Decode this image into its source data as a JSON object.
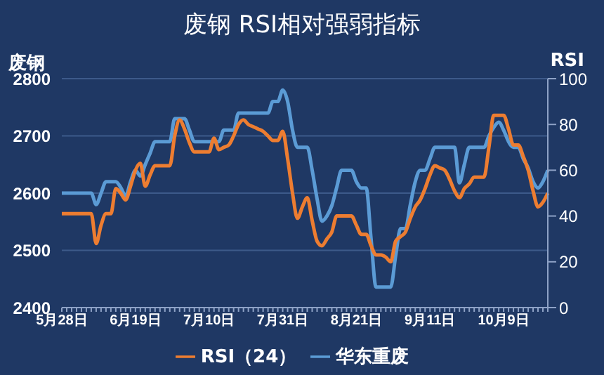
{
  "chart_data": {
    "type": "line",
    "title": "废钢 RSI相对强弱指标",
    "ylabel": "废钢",
    "y2label": "RSI",
    "categories": [
      "5月28日",
      null,
      null,
      null,
      null,
      null,
      null,
      null,
      null,
      null,
      null,
      null,
      null,
      null,
      null,
      "6月19日",
      null,
      null,
      null,
      null,
      null,
      null,
      null,
      null,
      null,
      null,
      null,
      null,
      null,
      null,
      "7月10日",
      null,
      null,
      null,
      null,
      null,
      null,
      null,
      null,
      null,
      null,
      null,
      null,
      null,
      null,
      "7月31日",
      null,
      null,
      null,
      null,
      null,
      null,
      null,
      null,
      null,
      null,
      null,
      null,
      null,
      null,
      "8月21日",
      null,
      null,
      null,
      null,
      null,
      null,
      null,
      null,
      null,
      null,
      null,
      null,
      null,
      null,
      "9月11日",
      null,
      null,
      null,
      null,
      null,
      null,
      null,
      null,
      null,
      null,
      null,
      null,
      null,
      null,
      "10月9日",
      null,
      null,
      null,
      null,
      null,
      null,
      null,
      null,
      null
    ],
    "series": [
      {
        "name": "华东重废",
        "color": "#5b9bd5",
        "values": [
          2600,
          2600,
          2600,
          2600,
          2600,
          2600,
          2600,
          2580,
          2600,
          2620,
          2620,
          2620,
          2610,
          2595,
          2620,
          2640,
          2630,
          2650,
          2670,
          2690,
          2690,
          2690,
          2690,
          2730,
          2730,
          2730,
          2710,
          2690,
          2690,
          2690,
          2690,
          2690,
          2690,
          2710,
          2710,
          2710,
          2740,
          2740,
          2740,
          2740,
          2740,
          2740,
          2740,
          2760,
          2760,
          2780,
          2760,
          2710,
          2680,
          2680,
          2680,
          2640,
          2590,
          2551,
          2560,
          2578,
          2610,
          2640,
          2640,
          2640,
          2620,
          2609,
          2609,
          2520,
          2436,
          2436,
          2436,
          2436,
          2490,
          2538,
          2538,
          2580,
          2620,
          2640,
          2640,
          2660,
          2680,
          2680,
          2680,
          2680,
          2680,
          2618,
          2650,
          2680,
          2680,
          2680,
          2680,
          2700,
          2715,
          2724,
          2710,
          2690,
          2680,
          2680,
          2660,
          2644,
          2620,
          2609,
          2620,
          2640
        ]
      },
      {
        "name": "RSI（24）",
        "color": "#ed7d31",
        "axis": "y2",
        "values": [
          41,
          41,
          41,
          41,
          41,
          41,
          41,
          28,
          36,
          41,
          41,
          52,
          50,
          47,
          53,
          60,
          63,
          53,
          58,
          62,
          62,
          62,
          62,
          75,
          82,
          78,
          72,
          68,
          68,
          68,
          68,
          74,
          69,
          70,
          71,
          75,
          80,
          82,
          80,
          79,
          78,
          77,
          75,
          73,
          73,
          77,
          65,
          50,
          39,
          44,
          48,
          38,
          29,
          27,
          30,
          33,
          40,
          40,
          40,
          40,
          36,
          32,
          32,
          27,
          23,
          23,
          22,
          20,
          29,
          31,
          33,
          39,
          44,
          47,
          52,
          58,
          62,
          61,
          60,
          56,
          51,
          48,
          52,
          54,
          57,
          57,
          57,
          70,
          84,
          84,
          84,
          78,
          71,
          71,
          66,
          60,
          51,
          44,
          46,
          50
        ]
      }
    ],
    "ylim": [
      2400,
      2800
    ],
    "yticks": [
      2400,
      2500,
      2600,
      2700,
      2800
    ],
    "y2lim": [
      0,
      100
    ],
    "y2ticks": [
      0,
      20,
      40,
      60,
      80,
      100
    ],
    "grid": "y",
    "legend": "bottom",
    "marker": "none",
    "line_style": "solid"
  }
}
